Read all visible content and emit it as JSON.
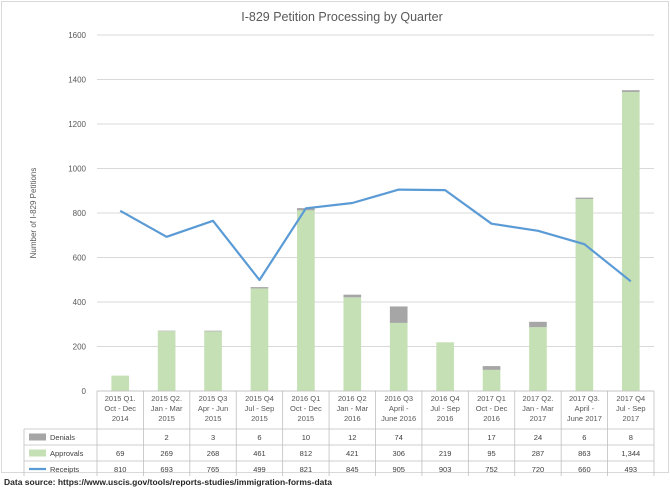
{
  "chart_data": {
    "type": "bar",
    "title": "I-829 Petition Processing by Quarter",
    "ylabel": "Number of I-829 Petitions",
    "ylim": [
      0,
      1600
    ],
    "yticks": [
      0,
      200,
      400,
      600,
      800,
      1000,
      1200,
      1400,
      1600
    ],
    "grid": true,
    "legend": "table-left",
    "categories": [
      [
        "2015 Q1.",
        "Oct - Dec",
        "2014"
      ],
      [
        "2015 Q2.",
        "Jan - Mar",
        "2015"
      ],
      [
        "2015 Q3",
        "Apr - Jun",
        "2015"
      ],
      [
        "2015 Q4",
        "Jul - Sep",
        "2015"
      ],
      [
        "2016 Q1",
        "Oct - Dec",
        "2015"
      ],
      [
        "2016 Q2",
        "Jan - Mar",
        "2016"
      ],
      [
        "2016 Q3",
        "April -",
        "June 2016"
      ],
      [
        "2016 Q4",
        "Jul - Sep",
        "2016"
      ],
      [
        "2017 Q1",
        "Oct - Dec",
        "2016"
      ],
      [
        "2017 Q2.",
        "Jan - Mar",
        "2017"
      ],
      [
        "2017 Q3.",
        "April -",
        "June 2017"
      ],
      [
        "2017 Q4",
        "Jul - Sep",
        "2017"
      ]
    ],
    "series": [
      {
        "name": "Denials",
        "kind": "bar-stacked",
        "color": "#a6a6a6",
        "values": [
          null,
          2,
          3,
          6,
          10,
          12,
          74,
          null,
          17,
          24,
          6,
          8
        ],
        "labels": [
          "",
          "2",
          "3",
          "6",
          "10",
          "12",
          "74",
          "",
          "17",
          "24",
          "6",
          "8"
        ]
      },
      {
        "name": "Approvals",
        "kind": "bar-stacked",
        "color": "#c5e0b4",
        "values": [
          69,
          269,
          268,
          461,
          812,
          421,
          306,
          219,
          95,
          287,
          863,
          1344
        ],
        "labels": [
          "69",
          "269",
          "268",
          "461",
          "812",
          "421",
          "306",
          "219",
          "95",
          "287",
          "863",
          "1,344"
        ]
      },
      {
        "name": "Receipts",
        "kind": "line",
        "color": "#5b9bd5",
        "values": [
          810,
          693,
          765,
          499,
          821,
          845,
          905,
          903,
          752,
          720,
          660,
          493
        ],
        "labels": [
          "810",
          "693",
          "765",
          "499",
          "821",
          "845",
          "905",
          "903",
          "752",
          "720",
          "660",
          "493"
        ]
      }
    ]
  },
  "source_text": "Data source: https://www.uscis.gov/tools/reports-studies/immigration-forms-data"
}
